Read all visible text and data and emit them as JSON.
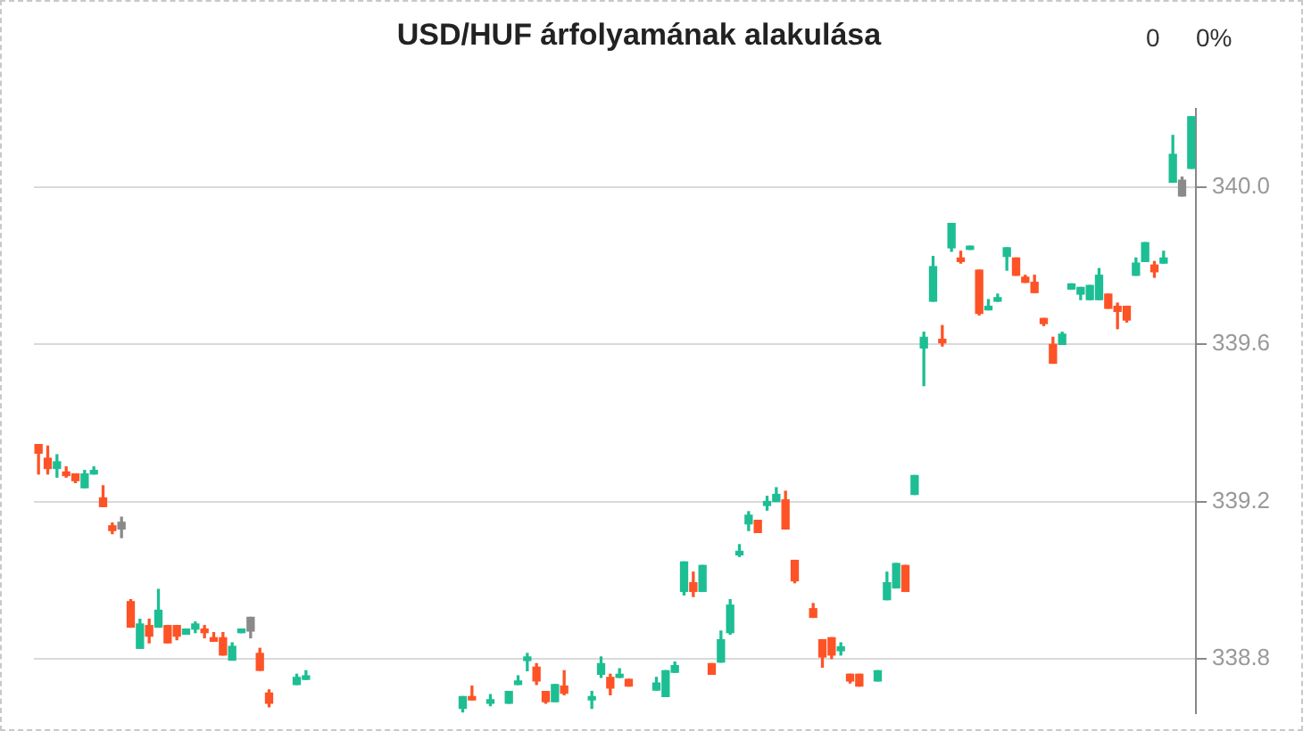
{
  "chart_data": {
    "type": "candlestick",
    "title": "USD/HUF árfolyamának alakulása",
    "annotations": [
      "0",
      "0%"
    ],
    "categories": [
      null,
      null,
      null,
      null,
      null,
      null,
      null,
      null,
      null,
      null,
      null,
      null,
      null,
      null,
      null,
      null,
      null,
      null,
      null,
      null,
      null,
      null,
      null,
      null,
      null,
      null,
      null,
      null,
      null,
      null,
      null,
      null,
      null,
      null,
      null,
      null,
      null,
      null,
      null,
      null,
      null,
      null,
      null,
      null,
      null,
      null,
      null,
      null,
      null,
      null,
      null,
      null,
      null,
      null,
      null,
      null,
      null,
      null,
      null,
      null,
      null,
      null,
      null,
      null,
      null,
      null,
      null,
      null,
      null,
      null,
      null,
      null,
      null,
      null,
      null,
      null,
      null,
      null,
      null,
      null,
      null,
      null,
      null,
      null,
      null,
      null,
      null,
      null,
      null,
      null,
      null,
      null,
      null,
      null,
      null,
      null,
      null,
      null,
      null,
      null,
      null,
      null,
      null,
      null,
      null,
      null,
      null,
      null,
      null,
      null,
      null,
      null,
      null,
      null,
      null,
      null,
      null,
      null,
      null,
      null,
      null,
      null,
      null,
      null,
      null,
      null
    ],
    "ohlc": [
      [
        339.345,
        339.345,
        339.27,
        339.323
      ],
      [
        339.31,
        339.341,
        339.27,
        339.284
      ],
      [
        339.284,
        339.319,
        339.262,
        339.301
      ],
      [
        339.275,
        339.288,
        339.262,
        339.266
      ],
      [
        339.27,
        339.27,
        339.248,
        339.253
      ],
      [
        339.235,
        339.279,
        339.235,
        339.27
      ],
      [
        339.27,
        339.288,
        339.27,
        339.279
      ],
      [
        339.209,
        339.24,
        339.187,
        339.187
      ],
      [
        339.138,
        339.145,
        339.118,
        339.126
      ],
      [
        339.13,
        339.16,
        339.108,
        339.147
      ],
      [
        338.945,
        338.95,
        338.88,
        338.88
      ],
      [
        338.826,
        338.9,
        338.826,
        338.888
      ],
      [
        338.884,
        338.9,
        338.84,
        338.857
      ],
      [
        338.88,
        338.976,
        338.88,
        338.923
      ],
      [
        338.884,
        338.884,
        338.84,
        338.84
      ],
      [
        338.884,
        338.884,
        338.848,
        338.857
      ],
      [
        338.862,
        338.875,
        338.862,
        338.875
      ],
      [
        338.875,
        338.893,
        338.866,
        338.888
      ],
      [
        338.875,
        338.884,
        338.853,
        338.866
      ],
      [
        338.853,
        338.866,
        338.844,
        338.844
      ],
      [
        338.853,
        338.866,
        338.809,
        338.809
      ],
      [
        338.796,
        338.84,
        338.796,
        338.831
      ],
      [
        338.866,
        338.875,
        338.866,
        338.875
      ],
      [
        338.87,
        338.905,
        338.853,
        338.905
      ],
      [
        338.813,
        338.826,
        338.77,
        338.77
      ],
      [
        338.712,
        338.72,
        338.677,
        338.686
      ],
      null,
      null,
      [
        338.734,
        338.76,
        338.734,
        338.752
      ],
      [
        338.747,
        338.769,
        338.747,
        338.756
      ],
      null,
      null,
      null,
      null,
      null,
      null,
      null,
      null,
      null,
      null,
      null,
      null,
      null,
      null,
      null,
      null,
      [
        338.673,
        338.703,
        338.664,
        338.703
      ],
      [
        338.703,
        338.73,
        338.695,
        338.695
      ],
      null,
      [
        338.686,
        338.708,
        338.68,
        338.695
      ],
      null,
      [
        338.686,
        338.716,
        338.686,
        338.716
      ],
      [
        338.734,
        338.756,
        338.734,
        338.743
      ],
      [
        338.795,
        338.813,
        338.769,
        338.804
      ],
      [
        338.778,
        338.787,
        338.734,
        338.743
      ],
      [
        338.716,
        338.716,
        338.686,
        338.69
      ],
      [
        338.69,
        338.734,
        338.69,
        338.734
      ],
      [
        338.73,
        338.769,
        338.708,
        338.712
      ],
      null,
      null,
      [
        338.695,
        338.716,
        338.673,
        338.703
      ],
      [
        338.76,
        338.804,
        338.752,
        338.787
      ],
      [
        338.752,
        338.76,
        338.708,
        338.725
      ],
      [
        338.752,
        338.774,
        338.752,
        338.76
      ],
      [
        338.747,
        338.747,
        338.73,
        338.73
      ],
      null,
      null,
      [
        338.72,
        338.752,
        338.72,
        338.738
      ],
      [
        338.703,
        338.769,
        338.703,
        338.769
      ],
      [
        338.765,
        338.791,
        338.765,
        338.782
      ],
      [
        338.971,
        339.046,
        338.962,
        339.046
      ],
      [
        338.993,
        339.02,
        338.958,
        338.971
      ],
      [
        338.971,
        339.037,
        338.971,
        339.037
      ],
      [
        338.787,
        338.787,
        338.76,
        338.76
      ],
      [
        338.791,
        338.87,
        338.791,
        338.848
      ],
      [
        338.866,
        338.95,
        338.862,
        338.936
      ],
      [
        339.064,
        339.09,
        339.06,
        339.073
      ],
      [
        339.143,
        339.174,
        339.126,
        339.165
      ],
      [
        339.152,
        339.152,
        339.121,
        339.121
      ],
      [
        339.19,
        339.213,
        339.178,
        339.2
      ],
      [
        339.2,
        339.235,
        339.2,
        339.218
      ],
      [
        339.204,
        339.226,
        339.13,
        339.13
      ],
      [
        339.05,
        339.05,
        338.993,
        338.998
      ],
      null,
      [
        338.927,
        338.94,
        338.905,
        338.905
      ],
      [
        338.848,
        338.848,
        338.778,
        338.804
      ],
      [
        338.853,
        338.853,
        338.8,
        338.809
      ],
      [
        338.82,
        338.84,
        338.809,
        338.83
      ],
      [
        338.76,
        338.76,
        338.738,
        338.743
      ],
      [
        338.76,
        338.76,
        338.73,
        338.73
      ],
      null,
      [
        338.743,
        338.769,
        338.743,
        338.769
      ],
      [
        338.95,
        339.02,
        338.95,
        338.993
      ],
      [
        338.98,
        339.042,
        338.98,
        339.042
      ],
      [
        339.037,
        339.037,
        338.971,
        338.971
      ],
      [
        339.218,
        339.266,
        339.218,
        339.266
      ],
      [
        339.591,
        339.631,
        339.495,
        339.618
      ],
      [
        339.71,
        339.824,
        339.71,
        339.798
      ],
      [
        339.613,
        339.648,
        339.596,
        339.604
      ],
      [
        339.846,
        339.908,
        339.837,
        339.908
      ],
      [
        339.82,
        339.837,
        339.807,
        339.811
      ],
      [
        339.842,
        339.85,
        339.842,
        339.85
      ],
      [
        339.789,
        339.789,
        339.675,
        339.679
      ],
      [
        339.688,
        339.714,
        339.688,
        339.697
      ],
      [
        339.71,
        339.728,
        339.71,
        339.719
      ],
      [
        339.824,
        339.846,
        339.789,
        339.846
      ],
      [
        339.82,
        339.82,
        339.776,
        339.776
      ],
      [
        339.771,
        339.776,
        339.758,
        339.758
      ],
      [
        339.758,
        339.776,
        339.732,
        339.732
      ],
      [
        339.666,
        339.666,
        339.648,
        339.653
      ],
      [
        339.6,
        339.618,
        339.552,
        339.552
      ],
      [
        339.6,
        339.631,
        339.6,
        339.626
      ],
      [
        339.741,
        339.754,
        339.741,
        339.754
      ],
      [
        339.728,
        339.745,
        339.714,
        339.745
      ],
      [
        339.714,
        339.75,
        339.714,
        339.75
      ],
      [
        339.714,
        339.793,
        339.714,
        339.776
      ],
      [
        339.728,
        339.728,
        339.692,
        339.692
      ],
      [
        339.697,
        339.705,
        339.64,
        339.684
      ],
      [
        339.697,
        339.697,
        339.657,
        339.662
      ],
      [
        339.776,
        339.82,
        339.776,
        339.807
      ],
      [
        339.811,
        339.859,
        339.811,
        339.859
      ],
      [
        339.802,
        339.811,
        339.771,
        339.785
      ],
      [
        339.807,
        339.837,
        339.807,
        339.82
      ],
      [
        340.013,
        340.132,
        340.013,
        340.084
      ],
      [
        340.018,
        340.026,
        339.978,
        339.978
      ],
      [
        340.048,
        340.18,
        340.048,
        340.18
      ]
    ],
    "colors": [
      "#fd5326",
      "#fd5326",
      "#1dbe93",
      "#fd5326",
      "#fd5326",
      "#1dbe93",
      "#1dbe93",
      "#fd5326",
      "#fd5326",
      "#8a8a8a",
      "#fd5326",
      "#1dbe93",
      "#fd5326",
      "#1dbe93",
      "#fd5326",
      "#fd5326",
      "#1dbe93",
      "#1dbe93",
      "#fd5326",
      "#fd5326",
      "#fd5326",
      "#1dbe93",
      "#1dbe93",
      "#8a8a8a",
      "#fd5326",
      "#fd5326",
      null,
      null,
      "#1dbe93",
      "#1dbe93",
      null,
      null,
      null,
      null,
      null,
      null,
      null,
      null,
      null,
      null,
      null,
      null,
      null,
      null,
      null,
      null,
      "#1dbe93",
      "#fd5326",
      null,
      "#1dbe93",
      null,
      "#1dbe93",
      "#1dbe93",
      "#1dbe93",
      "#fd5326",
      "#fd5326",
      "#1dbe93",
      "#fd5326",
      null,
      null,
      "#1dbe93",
      "#1dbe93",
      "#fd5326",
      "#1dbe93",
      "#fd5326",
      null,
      null,
      "#1dbe93",
      "#1dbe93",
      "#1dbe93",
      "#1dbe93",
      "#fd5326",
      "#1dbe93",
      "#fd5326",
      "#1dbe93",
      "#1dbe93",
      "#1dbe93",
      "#1dbe93",
      "#fd5326",
      "#1dbe93",
      "#1dbe93",
      "#fd5326",
      "#fd5326",
      null,
      "#fd5326",
      "#fd5326",
      "#fd5326",
      "#1dbe93",
      "#fd5326",
      "#fd5326",
      null,
      "#1dbe93",
      "#1dbe93",
      "#1dbe93",
      "#fd5326",
      "#1dbe93",
      "#1dbe93",
      "#1dbe93",
      "#fd5326",
      "#1dbe93",
      "#fd5326",
      "#1dbe93",
      "#fd5326",
      "#1dbe93",
      "#1dbe93",
      "#1dbe93",
      "#fd5326",
      "#fd5326",
      "#fd5326",
      "#fd5326",
      "#fd5326",
      "#1dbe93",
      "#1dbe93",
      "#1dbe93",
      "#1dbe93",
      "#1dbe93",
      "#fd5326",
      "#fd5326",
      "#fd5326",
      "#1dbe93",
      "#1dbe93",
      "#fd5326",
      "#1dbe93",
      "#1dbe93",
      "#8a8a8a",
      "#1dbe93"
    ],
    "ylim": [
      338.66,
      340.2
    ],
    "yticks": [
      338.8,
      339.2,
      339.6,
      {
        "value": 340,
        "label": "340.0"
      }
    ],
    "grid": "y",
    "tick_labels": "y"
  }
}
